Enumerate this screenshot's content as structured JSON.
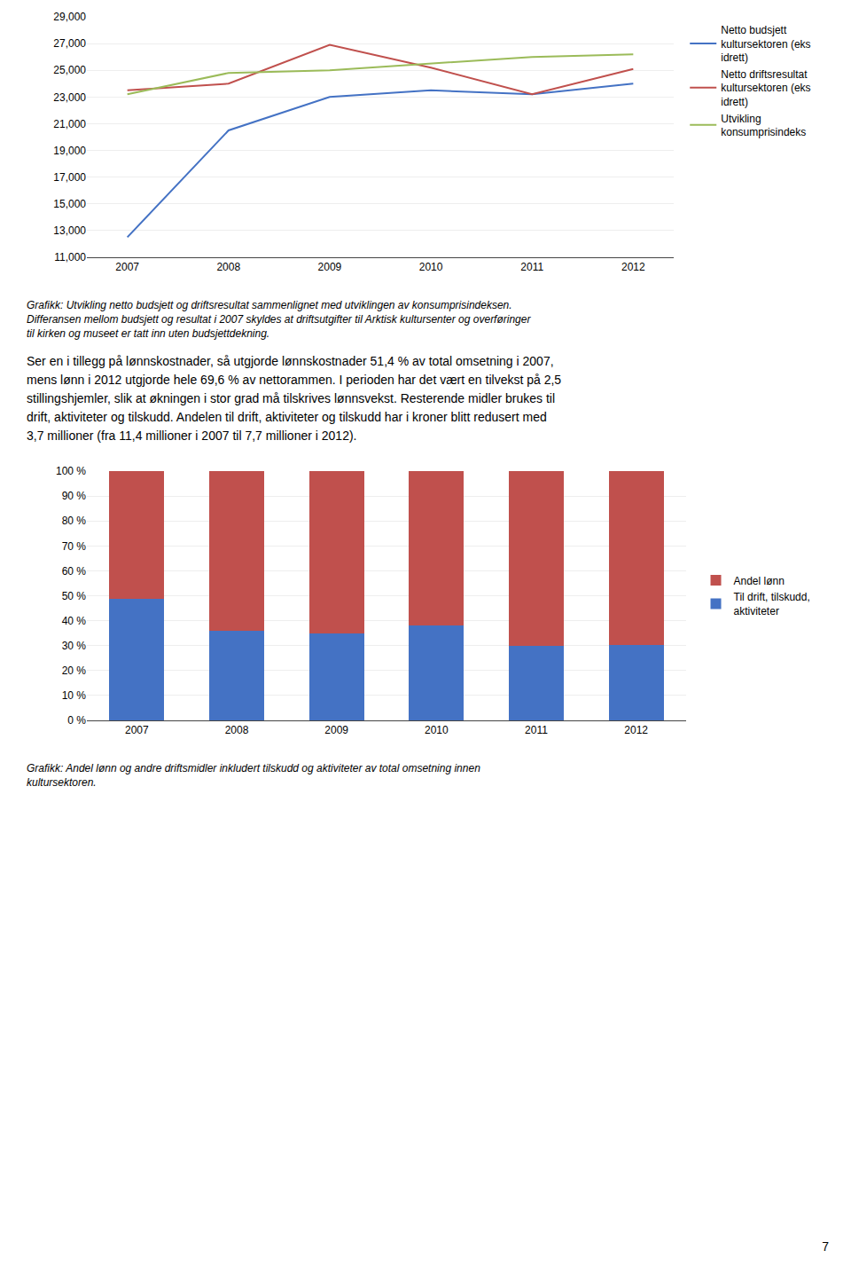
{
  "chart_data": [
    {
      "type": "line",
      "x": [
        2007,
        2008,
        2009,
        2010,
        2011,
        2012
      ],
      "series": [
        {
          "name": "Netto budsjett\nkultursektoren (eks\nidrett)",
          "color": "#4472C4",
          "values": [
            12500,
            20500,
            23000,
            23500,
            23200,
            24000
          ]
        },
        {
          "name": "Netto driftsresultat\nkultursektoren (eks\nidrett)",
          "color": "#C0504D",
          "values": [
            23500,
            24000,
            26900,
            25200,
            23200,
            25100
          ]
        },
        {
          "name": "Utvikling\nkonsumprisindeks",
          "color": "#9BBB59",
          "values": [
            23200,
            24800,
            25000,
            25500,
            26000,
            26200
          ]
        }
      ],
      "xlim": [
        2006.6,
        2012.4
      ],
      "xticks": [
        2007,
        2008,
        2009,
        2010,
        2011,
        2012
      ],
      "ylim": [
        11000,
        29000
      ],
      "yticks": [
        {
          "value": 11000,
          "label": "11,000"
        },
        {
          "value": 13000,
          "label": "13,000"
        },
        {
          "value": 15000,
          "label": "15,000"
        },
        {
          "value": 17000,
          "label": "17,000"
        },
        {
          "value": 19000,
          "label": "19,000"
        },
        {
          "value": 21000,
          "label": "21,000"
        },
        {
          "value": 23000,
          "label": "23,000"
        },
        {
          "value": 25000,
          "label": "25,000"
        },
        {
          "value": 27000,
          "label": "27,000"
        },
        {
          "value": 29000,
          "label": "29,000"
        }
      ],
      "grid": "y",
      "legend": "right",
      "caption": [
        "Grafikk: Utvikling netto budsjett og driftsresultat sammenlignet med utviklingen av konsumprisindeksen.",
        "Differansen mellom budsjett og resultat i 2007 skyldes at driftsutgifter til Arktisk kultursenter og overføringer",
        "til kirken og museet er tatt inn uten budsjettdekning."
      ]
    },
    {
      "type": "bar",
      "stacked": true,
      "categories": [
        "2007",
        "2008",
        "2009",
        "2010",
        "2011",
        "2012"
      ],
      "series": [
        {
          "name": "Til drift, tilskudd,\naktiviteter",
          "color": "#4472C4",
          "values": [
            48.6,
            36.0,
            35.0,
            38.0,
            30.0,
            30.4
          ]
        },
        {
          "name": "Andel lønn",
          "color": "#C0504D",
          "values": [
            51.4,
            64.0,
            65.0,
            62.0,
            70.0,
            69.6
          ]
        }
      ],
      "ylim": [
        0,
        100
      ],
      "yticks": [
        {
          "value": 0,
          "label": "0 %"
        },
        {
          "value": 10,
          "label": "10 %"
        },
        {
          "value": 20,
          "label": "20 %"
        },
        {
          "value": 30,
          "label": "30 %"
        },
        {
          "value": 40,
          "label": "40 %"
        },
        {
          "value": 50,
          "label": "50 %"
        },
        {
          "value": 60,
          "label": "60 %"
        },
        {
          "value": 70,
          "label": "70 %"
        },
        {
          "value": 80,
          "label": "80 %"
        },
        {
          "value": 90,
          "label": "90 %"
        },
        {
          "value": 100,
          "label": "100 %"
        }
      ],
      "grid": "y",
      "legend": "right",
      "caption": [
        "Grafikk: Andel lønn og andre driftsmidler inkludert tilskudd og aktiviteter av total omsetning innen",
        "kultursektoren."
      ]
    }
  ],
  "body": [
    "Ser en i tillegg på lønnskostnader, så utgjorde lønnskostnader 51,4 % av total omsetning i 2007,",
    "mens lønn i 2012 utgjorde hele 69,6 % av nettorammen. I perioden har det vært en tilvekst på 2,5",
    "stillingshjemler, slik at økningen i stor grad må tilskrives lønnsvekst. Resterende midler brukes til",
    "drift, aktiviteter og tilskudd. Andelen til drift, aktiviteter og tilskudd har i kroner blitt redusert med",
    "3,7 millioner (fra 11,4 millioner i 2007 til 7,7 millioner i 2012)."
  ],
  "page_number": "7"
}
